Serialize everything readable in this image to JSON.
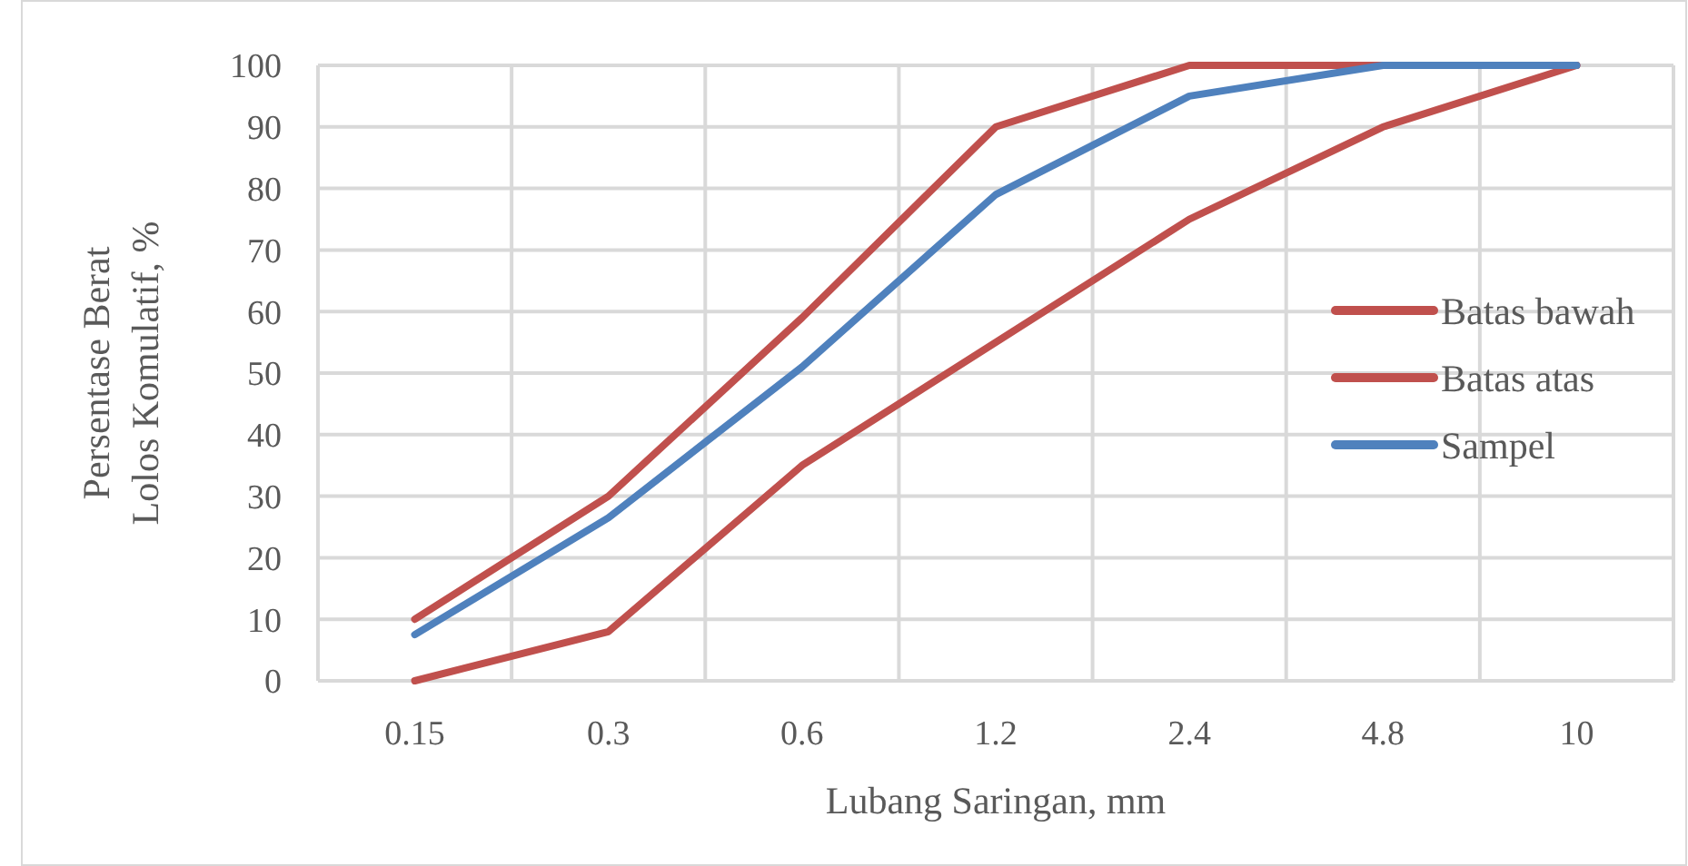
{
  "chart_data": {
    "type": "line",
    "xlabel": "Lubang Saringan, mm",
    "ylabel": "Persentase Berat Lolos Komulatif, %",
    "categories": [
      "0.15",
      "0.3",
      "0.6",
      "1.2",
      "2.4",
      "4.8",
      "10"
    ],
    "series": [
      {
        "name": "Batas bawah",
        "color": "#c0504d",
        "values": [
          0,
          8,
          35,
          55,
          75,
          90,
          100
        ]
      },
      {
        "name": "Batas atas",
        "color": "#c0504d",
        "values": [
          10,
          30,
          59,
          90,
          100,
          100,
          100
        ]
      },
      {
        "name": "Sampel",
        "color": "#4f81bd",
        "values": [
          7.5,
          26.5,
          51,
          79,
          95,
          100,
          100
        ]
      }
    ],
    "ylim": [
      0,
      100
    ],
    "yticks": [
      0,
      10,
      20,
      30,
      40,
      50,
      60,
      70,
      80,
      90,
      100
    ],
    "grid": true,
    "legend": "right",
    "marker": "none",
    "line_style": "solid"
  }
}
